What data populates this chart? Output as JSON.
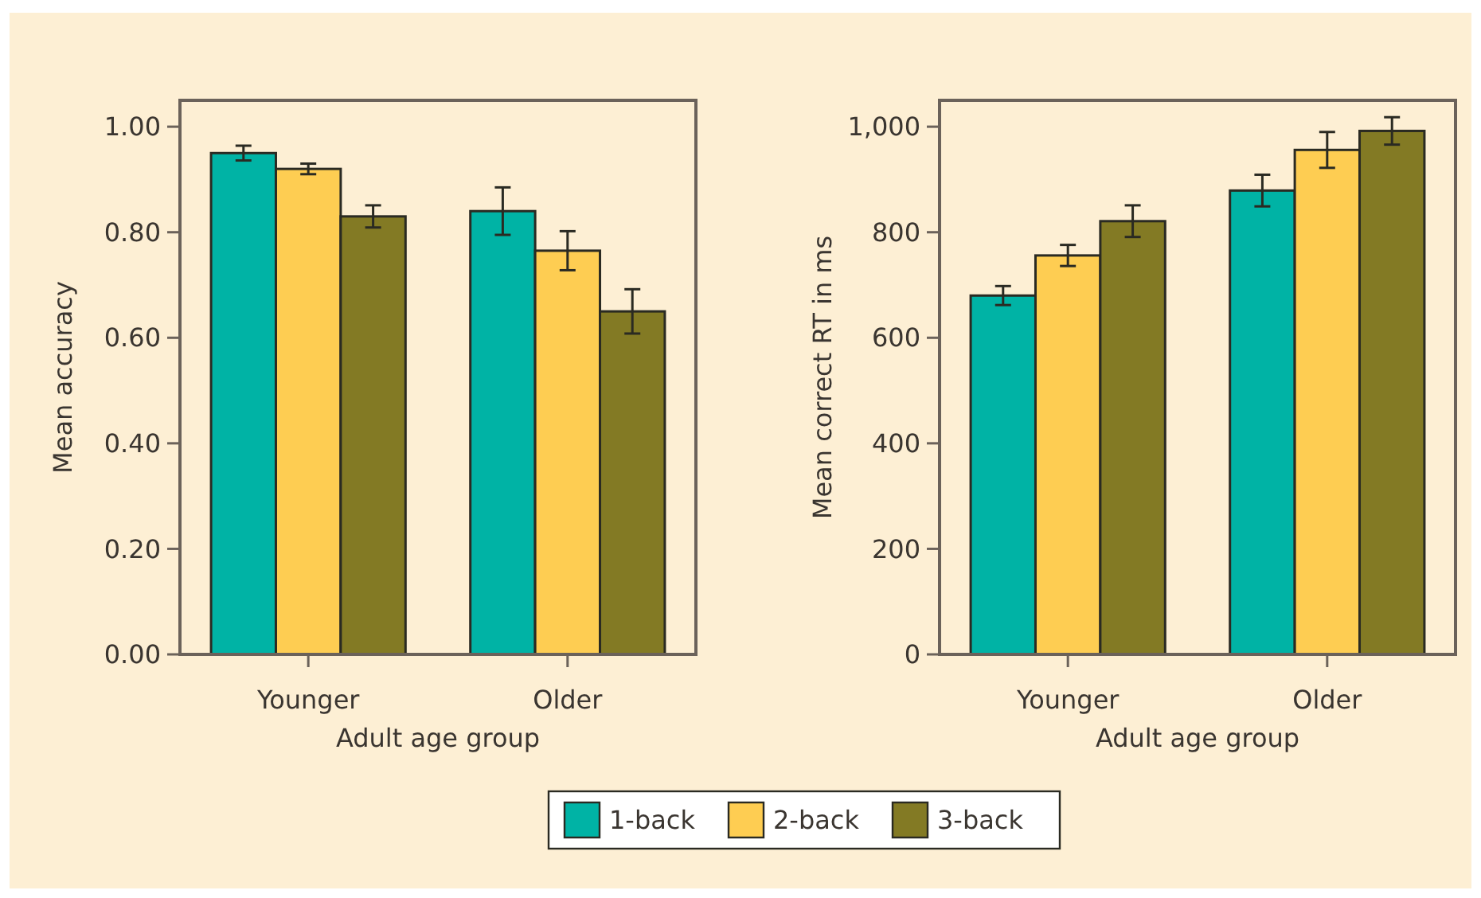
{
  "chart_data": [
    {
      "type": "bar",
      "xlabel": "Adult age group",
      "ylabel": "Mean accuracy",
      "categories": [
        "Younger",
        "Older"
      ],
      "series": [
        {
          "name": "1-back",
          "color": "#00b3a5",
          "values": [
            0.95,
            0.84
          ],
          "errors": [
            0.014,
            0.045
          ]
        },
        {
          "name": "2-back",
          "color": "#fecd52",
          "values": [
            0.92,
            0.765
          ],
          "errors": [
            0.01,
            0.037
          ]
        },
        {
          "name": "3-back",
          "color": "#837a24",
          "values": [
            0.83,
            0.65
          ],
          "errors": [
            0.021,
            0.042
          ]
        }
      ],
      "ylim": [
        0,
        1.05
      ],
      "yticks": [
        {
          "value": 0,
          "label": "0.00"
        },
        {
          "value": 0.2,
          "label": "0.20"
        },
        {
          "value": 0.4,
          "label": "0.40"
        },
        {
          "value": 0.6,
          "label": "0.60"
        },
        {
          "value": 0.8,
          "label": "0.80"
        },
        {
          "value": 1,
          "label": "1.00"
        }
      ],
      "grid": false,
      "legend": "bottom"
    },
    {
      "type": "bar",
      "xlabel": "Adult age group",
      "ylabel": "Mean correct RT in ms",
      "categories": [
        "Younger",
        "Older"
      ],
      "series": [
        {
          "color": "#00b3a5",
          "values": [
            680,
            879
          ],
          "errors": [
            18,
            30
          ]
        },
        {
          "color": "#fecd52",
          "values": [
            756,
            956
          ],
          "errors": [
            20,
            34
          ]
        },
        {
          "color": "#837a24",
          "values": [
            821,
            992
          ],
          "errors": [
            30,
            26
          ]
        }
      ],
      "ylim": [
        0,
        1050
      ],
      "yticks": [
        0,
        200,
        400,
        600,
        800,
        {
          "value": 1000,
          "label": "1,000"
        }
      ],
      "grid": false
    }
  ]
}
